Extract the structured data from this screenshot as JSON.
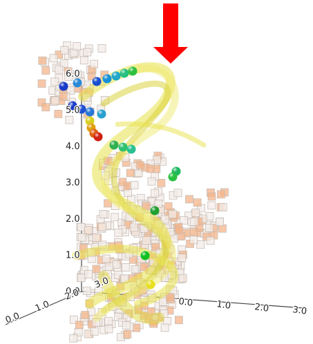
{
  "axes": {
    "vertical": {
      "ticks": [
        "0.0",
        "1.0",
        "2.0",
        "3.0",
        "4.0",
        "5.0",
        "6.0"
      ]
    },
    "x": {
      "ticks": [
        "0.0",
        "1.0",
        "2.0",
        "3.0"
      ]
    },
    "y": {
      "ticks": [
        "0.0",
        "1.0",
        "2.0",
        "3.0"
      ]
    }
  }
}
